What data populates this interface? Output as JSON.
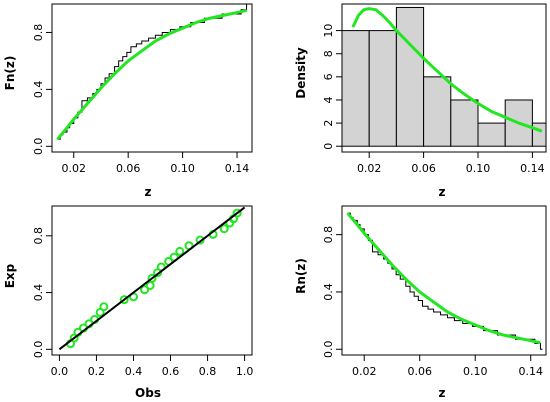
{
  "colors": {
    "fit": "#22e622",
    "frame": "#000000",
    "hist_fill": "#d3d3d3",
    "points": "#22e622",
    "line": "#000000"
  },
  "chart_data": [
    {
      "id": "ecdf",
      "type": "line",
      "xlabel": "z",
      "ylabel": "Fn(z)",
      "xlim": [
        0.004,
        0.151
      ],
      "ylim": [
        -0.04,
        1.0
      ],
      "xticks": [
        {
          "v": 0.02,
          "l": "0.02"
        },
        {
          "v": 0.06,
          "l": "0.06"
        },
        {
          "v": 0.1,
          "l": "0.10"
        },
        {
          "v": 0.14,
          "l": "0.14"
        }
      ],
      "yticks": [
        {
          "v": 0.0,
          "l": "0.0"
        },
        {
          "v": 0.4,
          "l": "0.4"
        },
        {
          "v": 0.8,
          "l": "0.8"
        }
      ],
      "ecdf_x": [
        0.008,
        0.01,
        0.012,
        0.015,
        0.017,
        0.02,
        0.023,
        0.026,
        0.03,
        0.034,
        0.037,
        0.04,
        0.043,
        0.046,
        0.05,
        0.053,
        0.056,
        0.059,
        0.062,
        0.066,
        0.07,
        0.075,
        0.08,
        0.085,
        0.091,
        0.098,
        0.106,
        0.116,
        0.129,
        0.143,
        0.147
      ],
      "ecdf_y": [
        0.05,
        0.08,
        0.1,
        0.13,
        0.16,
        0.2,
        0.24,
        0.32,
        0.34,
        0.37,
        0.4,
        0.44,
        0.48,
        0.51,
        0.56,
        0.6,
        0.63,
        0.66,
        0.7,
        0.72,
        0.74,
        0.76,
        0.78,
        0.8,
        0.82,
        0.84,
        0.87,
        0.9,
        0.93,
        0.96,
        1.0
      ],
      "fit_x": [
        0.008,
        0.015,
        0.02,
        0.03,
        0.04,
        0.05,
        0.06,
        0.07,
        0.08,
        0.09,
        0.1,
        0.11,
        0.12,
        0.13,
        0.14,
        0.147
      ],
      "fit_y": [
        0.05,
        0.13,
        0.19,
        0.3,
        0.41,
        0.51,
        0.6,
        0.67,
        0.74,
        0.79,
        0.83,
        0.87,
        0.9,
        0.92,
        0.94,
        0.955
      ]
    },
    {
      "id": "hist",
      "type": "bar",
      "xlabel": "z",
      "ylabel": "Density",
      "xlim": [
        0.0,
        0.15
      ],
      "ylim": [
        -0.5,
        12.3
      ],
      "xticks": [
        {
          "v": 0.02,
          "l": "0.02"
        },
        {
          "v": 0.06,
          "l": "0.06"
        },
        {
          "v": 0.1,
          "l": "0.10"
        },
        {
          "v": 0.14,
          "l": "0.14"
        }
      ],
      "yticks": [
        {
          "v": 0,
          "l": "0"
        },
        {
          "v": 2,
          "l": "2"
        },
        {
          "v": 4,
          "l": "4"
        },
        {
          "v": 6,
          "l": "6"
        },
        {
          "v": 8,
          "l": "8"
        },
        {
          "v": 10,
          "l": "10"
        }
      ],
      "bins": [
        [
          0.0,
          0.02,
          10
        ],
        [
          0.02,
          0.04,
          10
        ],
        [
          0.04,
          0.06,
          12
        ],
        [
          0.06,
          0.08,
          6
        ],
        [
          0.08,
          0.1,
          4
        ],
        [
          0.1,
          0.12,
          2
        ],
        [
          0.12,
          0.14,
          4
        ],
        [
          0.14,
          0.16,
          2
        ]
      ],
      "fit_x": [
        0.008,
        0.012,
        0.016,
        0.02,
        0.025,
        0.03,
        0.035,
        0.04,
        0.05,
        0.06,
        0.07,
        0.08,
        0.09,
        0.1,
        0.11,
        0.12,
        0.13,
        0.14,
        0.147
      ],
      "fit_y": [
        10.3,
        11.3,
        11.8,
        11.9,
        11.8,
        11.3,
        10.7,
        10.0,
        8.8,
        7.6,
        6.5,
        5.4,
        4.5,
        3.7,
        3.0,
        2.5,
        2.0,
        1.6,
        1.3
      ]
    },
    {
      "id": "pp",
      "type": "scatter",
      "xlabel": "Obs",
      "ylabel": "Exp",
      "xlim": [
        -0.04,
        1.04
      ],
      "ylim": [
        -0.04,
        1.01
      ],
      "xticks": [
        {
          "v": 0.0,
          "l": "0.0"
        },
        {
          "v": 0.2,
          "l": "0.2"
        },
        {
          "v": 0.4,
          "l": "0.4"
        },
        {
          "v": 0.6,
          "l": "0.6"
        },
        {
          "v": 0.8,
          "l": "0.8"
        },
        {
          "v": 1.0,
          "l": "1.0"
        }
      ],
      "yticks": [
        {
          "v": 0.0,
          "l": "0.0"
        },
        {
          "v": 0.4,
          "l": "0.4"
        },
        {
          "v": 0.8,
          "l": "0.8"
        }
      ],
      "points": [
        [
          0.06,
          0.04
        ],
        [
          0.08,
          0.08
        ],
        [
          0.1,
          0.12
        ],
        [
          0.13,
          0.15
        ],
        [
          0.16,
          0.18
        ],
        [
          0.19,
          0.21
        ],
        [
          0.22,
          0.26
        ],
        [
          0.24,
          0.3
        ],
        [
          0.35,
          0.35
        ],
        [
          0.4,
          0.37
        ],
        [
          0.46,
          0.42
        ],
        [
          0.49,
          0.45
        ],
        [
          0.5,
          0.5
        ],
        [
          0.53,
          0.54
        ],
        [
          0.55,
          0.58
        ],
        [
          0.59,
          0.62
        ],
        [
          0.62,
          0.65
        ],
        [
          0.65,
          0.69
        ],
        [
          0.7,
          0.73
        ],
        [
          0.76,
          0.77
        ],
        [
          0.83,
          0.81
        ],
        [
          0.89,
          0.85
        ],
        [
          0.92,
          0.89
        ],
        [
          0.94,
          0.92
        ],
        [
          0.96,
          0.96
        ]
      ],
      "line": [
        [
          0.0,
          0.0
        ],
        [
          1.0,
          1.0
        ]
      ]
    },
    {
      "id": "surv",
      "type": "line",
      "xlabel": "z",
      "ylabel": "Rn(z)",
      "xlim": [
        0.004,
        0.151
      ],
      "ylim": [
        -0.04,
        1.0
      ],
      "xticks": [
        {
          "v": 0.02,
          "l": "0.02"
        },
        {
          "v": 0.06,
          "l": "0.06"
        },
        {
          "v": 0.1,
          "l": "0.10"
        },
        {
          "v": 0.14,
          "l": "0.14"
        }
      ],
      "yticks": [
        {
          "v": 0.0,
          "l": "0.0"
        },
        {
          "v": 0.4,
          "l": "0.4"
        },
        {
          "v": 0.8,
          "l": "0.8"
        }
      ],
      "ecdf_x": [
        0.008,
        0.01,
        0.012,
        0.015,
        0.017,
        0.02,
        0.023,
        0.026,
        0.03,
        0.034,
        0.037,
        0.04,
        0.043,
        0.046,
        0.05,
        0.053,
        0.056,
        0.059,
        0.062,
        0.066,
        0.07,
        0.075,
        0.08,
        0.085,
        0.091,
        0.098,
        0.106,
        0.116,
        0.129,
        0.143,
        0.147
      ],
      "ecdf_y": [
        0.95,
        0.92,
        0.9,
        0.87,
        0.84,
        0.8,
        0.76,
        0.68,
        0.66,
        0.63,
        0.6,
        0.56,
        0.52,
        0.49,
        0.44,
        0.4,
        0.37,
        0.34,
        0.3,
        0.28,
        0.26,
        0.24,
        0.22,
        0.2,
        0.18,
        0.16,
        0.13,
        0.1,
        0.07,
        0.04,
        0.0
      ],
      "fit_x": [
        0.008,
        0.015,
        0.02,
        0.03,
        0.04,
        0.05,
        0.06,
        0.07,
        0.08,
        0.09,
        0.1,
        0.11,
        0.12,
        0.13,
        0.14,
        0.147
      ],
      "fit_y": [
        0.95,
        0.87,
        0.81,
        0.7,
        0.59,
        0.49,
        0.4,
        0.33,
        0.26,
        0.21,
        0.17,
        0.13,
        0.1,
        0.08,
        0.06,
        0.045
      ]
    }
  ]
}
